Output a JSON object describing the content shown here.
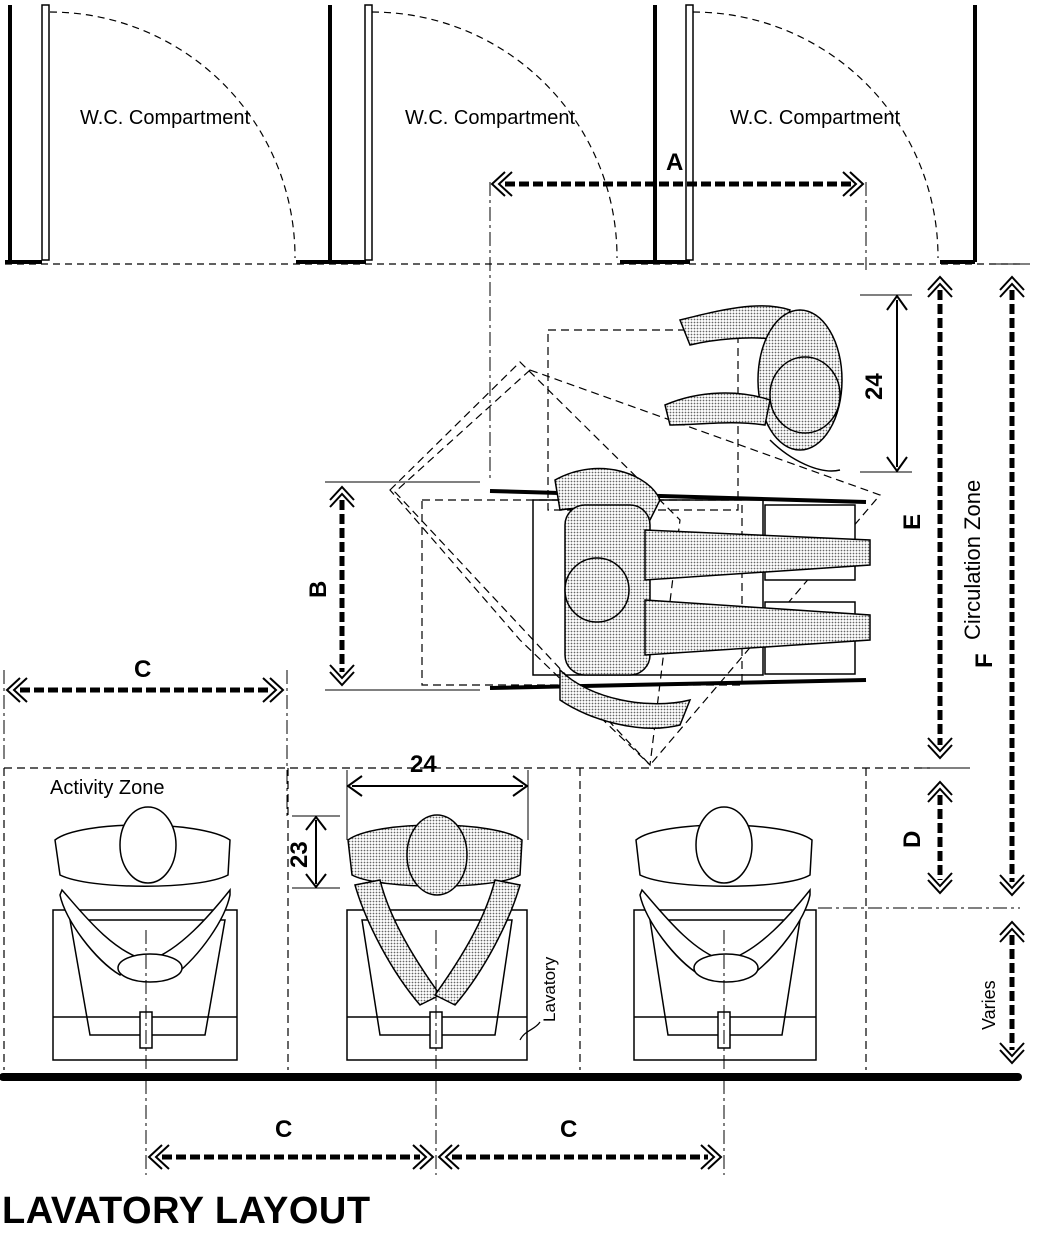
{
  "compartments": [
    "W.C. Compartment",
    "W.C. Compartment",
    "W.C. Compartment"
  ],
  "dimensions": {
    "A": "A",
    "B": "B",
    "C": "C",
    "D": "D",
    "E": "E",
    "F": "F",
    "width_24": "24",
    "depth_24": "24",
    "depth_23": "23"
  },
  "zones": {
    "activity": "Activity Zone",
    "circulation": "Circulation Zone",
    "varies": "Varies"
  },
  "fixture": "Lavatory",
  "title": "LAVATORY LAYOUT",
  "colors": {
    "ink": "#000000",
    "paper": "#ffffff",
    "shade": "#9a9a9a"
  }
}
